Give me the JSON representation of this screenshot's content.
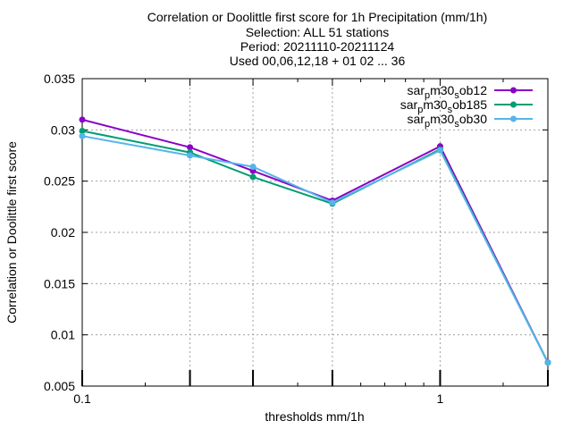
{
  "chart_data": {
    "type": "line",
    "title_lines": [
      "Correlation or Doolittle first score  for 1h Precipitation (mm/1h)",
      "Selection: ALL     51 stations",
      "Period: 20211110-20211124",
      "Used 00,06,12,18 + 01 02 ... 36"
    ],
    "xlabel": "thresholds mm/1h",
    "ylabel": "Correlation or Doolittle first score",
    "x_scale": "log",
    "xlim": [
      0.1,
      2
    ],
    "ylim": [
      0.005,
      0.035
    ],
    "x_ticks": [
      {
        "value": 0.1,
        "label": "0.1"
      },
      {
        "value": 1,
        "label": "1"
      }
    ],
    "y_ticks": [
      {
        "value": 0.005,
        "label": "0.005"
      },
      {
        "value": 0.01,
        "label": "0.01"
      },
      {
        "value": 0.015,
        "label": "0.015"
      },
      {
        "value": 0.02,
        "label": "0.02"
      },
      {
        "value": 0.025,
        "label": "0.025"
      },
      {
        "value": 0.03,
        "label": "0.03"
      },
      {
        "value": 0.035,
        "label": "0.035"
      }
    ],
    "grid": true,
    "legend_position": "top-right",
    "x": [
      0.1,
      0.2,
      0.3,
      0.5,
      1,
      2
    ],
    "series": [
      {
        "name_base": "sar",
        "name_sub1": "p",
        "name_mid": "m30",
        "name_sub2": "s",
        "name_end": "ob12",
        "color": "#8B00C8",
        "values": [
          0.031,
          0.0283,
          0.026,
          0.0231,
          0.0284,
          0.0073
        ]
      },
      {
        "name_base": "sar",
        "name_sub1": "p",
        "name_mid": "m30",
        "name_sub2": "s",
        "name_end": "ob185",
        "color": "#009E73",
        "values": [
          0.0299,
          0.0278,
          0.0254,
          0.0228,
          0.0281,
          0.0073
        ]
      },
      {
        "name_base": "sar",
        "name_sub1": "p",
        "name_mid": "m30",
        "name_sub2": "s",
        "name_end": "ob30",
        "color": "#56B4E9",
        "values": [
          0.0294,
          0.0275,
          0.0264,
          0.0229,
          0.028,
          0.0073
        ]
      }
    ]
  }
}
